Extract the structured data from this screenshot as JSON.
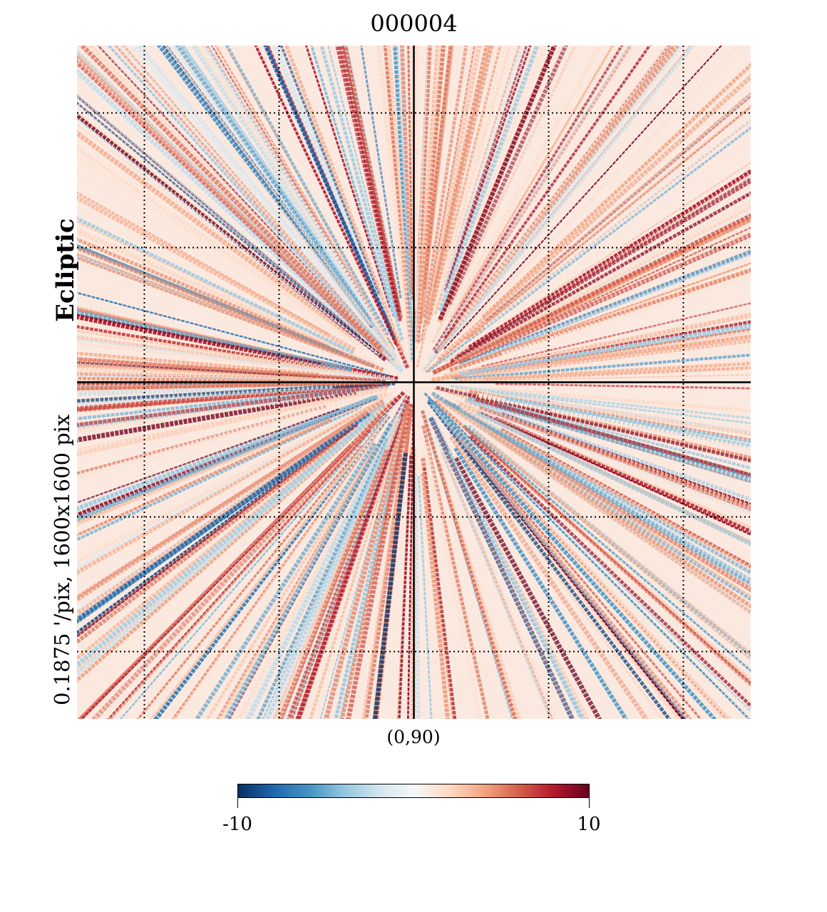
{
  "chart_data": {
    "type": "heatmap",
    "title": "000004",
    "projection_info": "0.1875 '/pix,   1600x1600 pix",
    "coord_system": "Ecliptic",
    "center_label": "(0,90)",
    "colorbar": {
      "min": -10,
      "max": 10,
      "min_label": "-10",
      "max_label": "10",
      "colormap": [
        "#053061",
        "#2166ac",
        "#4393c3",
        "#92c5de",
        "#d1e5f0",
        "#f7f7f7",
        "#fddbc7",
        "#f4a582",
        "#d6604d",
        "#b2182b",
        "#67001f"
      ]
    },
    "graticule": "dotted",
    "crosshair": true,
    "pattern": "radial streaks of mostly positive values around the center point, with a few negative streaks"
  }
}
